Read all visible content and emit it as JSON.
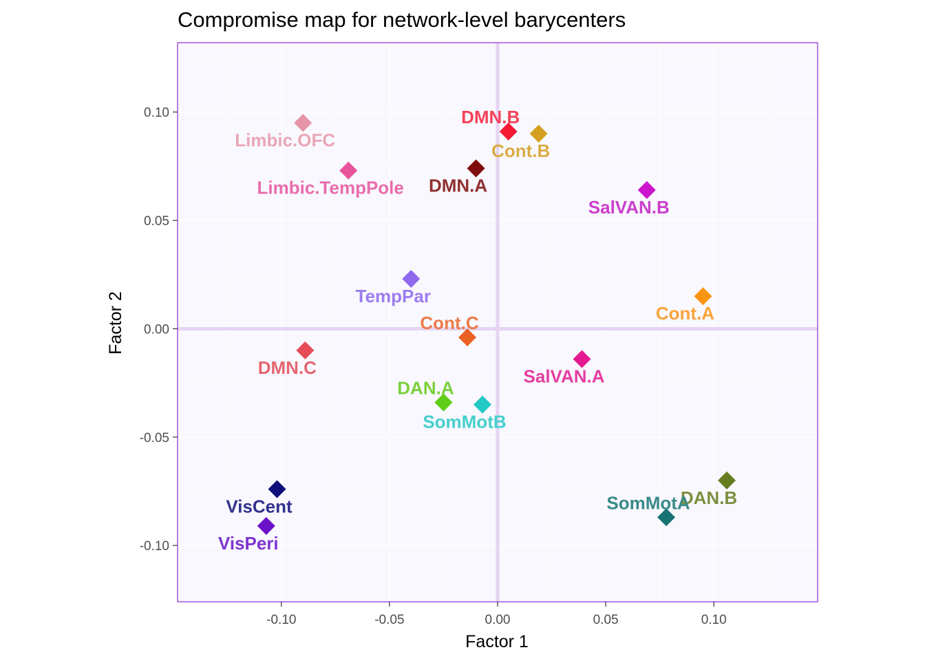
{
  "chart_data": {
    "type": "scatter",
    "title": "Compromise map for network-level barycenters",
    "xlabel": "Factor 1",
    "ylabel": "Factor 2",
    "xlim": [
      -0.148,
      0.148
    ],
    "ylim": [
      -0.126,
      0.132
    ],
    "x_ticks": [
      -0.1,
      -0.05,
      0.0,
      0.05,
      0.1
    ],
    "x_tick_labels": [
      "-0.10",
      "-0.05",
      "0.00",
      "0.05",
      "0.10"
    ],
    "y_ticks": [
      -0.1,
      -0.05,
      0.0,
      0.05,
      0.1
    ],
    "y_tick_labels": [
      "-0.10",
      "-0.05",
      "0.00",
      "0.05",
      "0.10"
    ],
    "grid": true,
    "reference_lines": {
      "x": 0,
      "y": 0,
      "color": "#e6d4f2"
    },
    "panel_background": "#f8f8fe",
    "panel_border": "#8e2bd6",
    "marker": "diamond",
    "points": [
      {
        "label": "Limbic.OFC",
        "x": -0.09,
        "y": 0.095,
        "color": "#e695a8",
        "label_color": "#eaa6b6",
        "label_pos": "below"
      },
      {
        "label": "Limbic.TempPole",
        "x": -0.069,
        "y": 0.073,
        "color": "#e8539c",
        "label_color": "#e96cac",
        "label_pos": "below"
      },
      {
        "label": "DMN.B",
        "x": 0.005,
        "y": 0.091,
        "color": "#f51a35",
        "label_color": "#f4425a",
        "label_pos": "above"
      },
      {
        "label": "Cont.B",
        "x": 0.019,
        "y": 0.09,
        "color": "#d5a020",
        "label_color": "#dbac45",
        "label_pos": "below"
      },
      {
        "label": "DMN.A",
        "x": -0.01,
        "y": 0.074,
        "color": "#7e0d0d",
        "label_color": "#8f3030",
        "label_pos": "below"
      },
      {
        "label": "SalVAN.B",
        "x": 0.069,
        "y": 0.064,
        "color": "#cc15cc",
        "label_color": "#cc3ecc",
        "label_pos": "below"
      },
      {
        "label": "TempPar",
        "x": -0.04,
        "y": 0.023,
        "color": "#8f69ee",
        "label_color": "#9d7cf0",
        "label_pos": "below"
      },
      {
        "label": "Cont.A",
        "x": 0.095,
        "y": 0.015,
        "color": "#fb9410",
        "label_color": "#f9a43a",
        "label_pos": "below"
      },
      {
        "label": "Cont.C",
        "x": -0.014,
        "y": -0.004,
        "color": "#ea6124",
        "label_color": "#ec7a48",
        "label_pos": "above"
      },
      {
        "label": "DMN.C",
        "x": -0.089,
        "y": -0.01,
        "color": "#e64d58",
        "label_color": "#e66570",
        "label_pos": "below"
      },
      {
        "label": "SalVAN.A",
        "x": 0.039,
        "y": -0.014,
        "color": "#e51990",
        "label_color": "#e63ea0",
        "label_pos": "below"
      },
      {
        "label": "DAN.A",
        "x": -0.025,
        "y": -0.034,
        "color": "#5fcc16",
        "label_color": "#7ad13c",
        "label_pos": "above"
      },
      {
        "label": "SomMotB",
        "x": -0.007,
        "y": -0.035,
        "color": "#22c9c6",
        "label_color": "#47cfcc",
        "label_pos": "below"
      },
      {
        "label": "VisCent",
        "x": -0.102,
        "y": -0.074,
        "color": "#0f0f7c",
        "label_color": "#31318e",
        "label_pos": "below"
      },
      {
        "label": "VisPeri",
        "x": -0.107,
        "y": -0.091,
        "color": "#6b12c9",
        "label_color": "#7f33d0",
        "label_pos": "below"
      },
      {
        "label": "DAN.B",
        "x": 0.106,
        "y": -0.07,
        "color": "#667d22",
        "label_color": "#7c8f40",
        "label_pos": "below"
      },
      {
        "label": "SomMotA",
        "x": 0.078,
        "y": -0.087,
        "color": "#187474",
        "label_color": "#3a8a8a",
        "label_pos": "above"
      }
    ]
  }
}
